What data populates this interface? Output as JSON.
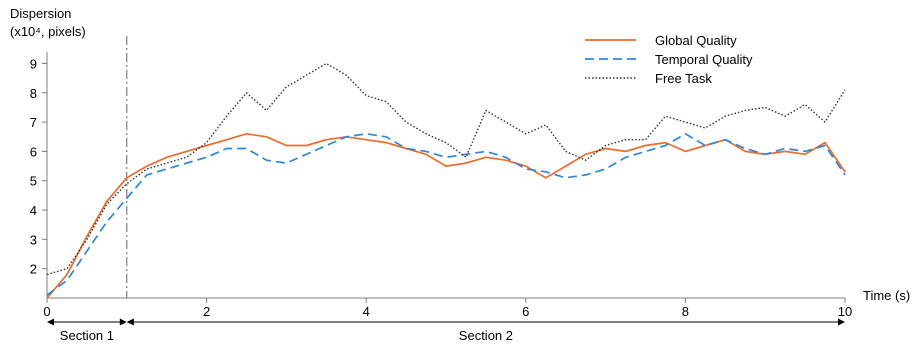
{
  "chart_data": {
    "type": "line",
    "title": "",
    "ylabel_lines": [
      "Dispersion",
      "(x10⁴, pixels)"
    ],
    "xlabel": "Time (s)",
    "xlim": [
      0,
      10
    ],
    "ylim": [
      1,
      9.8
    ],
    "xticks": [
      0,
      2,
      4,
      6,
      8,
      10
    ],
    "yticks": [
      2,
      3,
      4,
      5,
      6,
      7,
      8,
      9
    ],
    "grid": false,
    "legend_position": "top-right",
    "divider_x": 1,
    "sections": [
      {
        "label": "Section 1",
        "from": 0,
        "to": 1
      },
      {
        "label": "Section 2",
        "from": 1,
        "to": 10
      }
    ],
    "x": [
      0,
      0.25,
      0.5,
      0.75,
      1,
      1.25,
      1.5,
      1.75,
      2,
      2.25,
      2.5,
      2.75,
      3,
      3.25,
      3.5,
      3.75,
      4,
      4.25,
      4.5,
      4.75,
      5,
      5.25,
      5.5,
      5.75,
      6,
      6.25,
      6.5,
      6.75,
      7,
      7.25,
      7.5,
      7.75,
      8,
      8.25,
      8.5,
      8.75,
      9,
      9.25,
      9.5,
      9.75,
      10
    ],
    "series": [
      {
        "name": "Global Quality",
        "color": "#ED6B2B",
        "style": "solid",
        "values": [
          1.0,
          1.8,
          3.1,
          4.3,
          5.1,
          5.5,
          5.8,
          6.0,
          6.2,
          6.4,
          6.6,
          6.5,
          6.2,
          6.2,
          6.4,
          6.5,
          6.4,
          6.3,
          6.1,
          5.9,
          5.5,
          5.6,
          5.8,
          5.7,
          5.5,
          5.1,
          5.5,
          5.9,
          6.1,
          6.0,
          6.2,
          6.3,
          6.0,
          6.2,
          6.4,
          6.0,
          5.9,
          6.0,
          5.9,
          6.3,
          5.3
        ]
      },
      {
        "name": "Temporal Quality",
        "color": "#2E86DE",
        "style": "dashed",
        "values": [
          1.1,
          1.6,
          2.6,
          3.6,
          4.4,
          5.2,
          5.4,
          5.6,
          5.8,
          6.1,
          6.1,
          5.7,
          5.6,
          5.9,
          6.2,
          6.5,
          6.6,
          6.5,
          6.1,
          6.0,
          5.8,
          5.9,
          6.0,
          5.8,
          5.4,
          5.3,
          5.1,
          5.2,
          5.4,
          5.8,
          6.0,
          6.2,
          6.6,
          6.2,
          6.4,
          6.1,
          5.9,
          6.1,
          6.0,
          6.2,
          5.2
        ]
      },
      {
        "name": "Free Task",
        "color": "#333333",
        "style": "dotted",
        "values": [
          1.8,
          2.0,
          3.0,
          4.2,
          4.9,
          5.4,
          5.6,
          5.8,
          6.3,
          7.2,
          8.0,
          7.4,
          8.2,
          8.6,
          9.0,
          8.6,
          7.9,
          7.7,
          7.0,
          6.6,
          6.3,
          5.8,
          7.4,
          7.0,
          6.6,
          6.9,
          6.0,
          5.7,
          6.2,
          6.4,
          6.4,
          7.2,
          7.0,
          6.8,
          7.2,
          7.4,
          7.5,
          7.2,
          7.6,
          7.0,
          8.1
        ]
      }
    ]
  }
}
